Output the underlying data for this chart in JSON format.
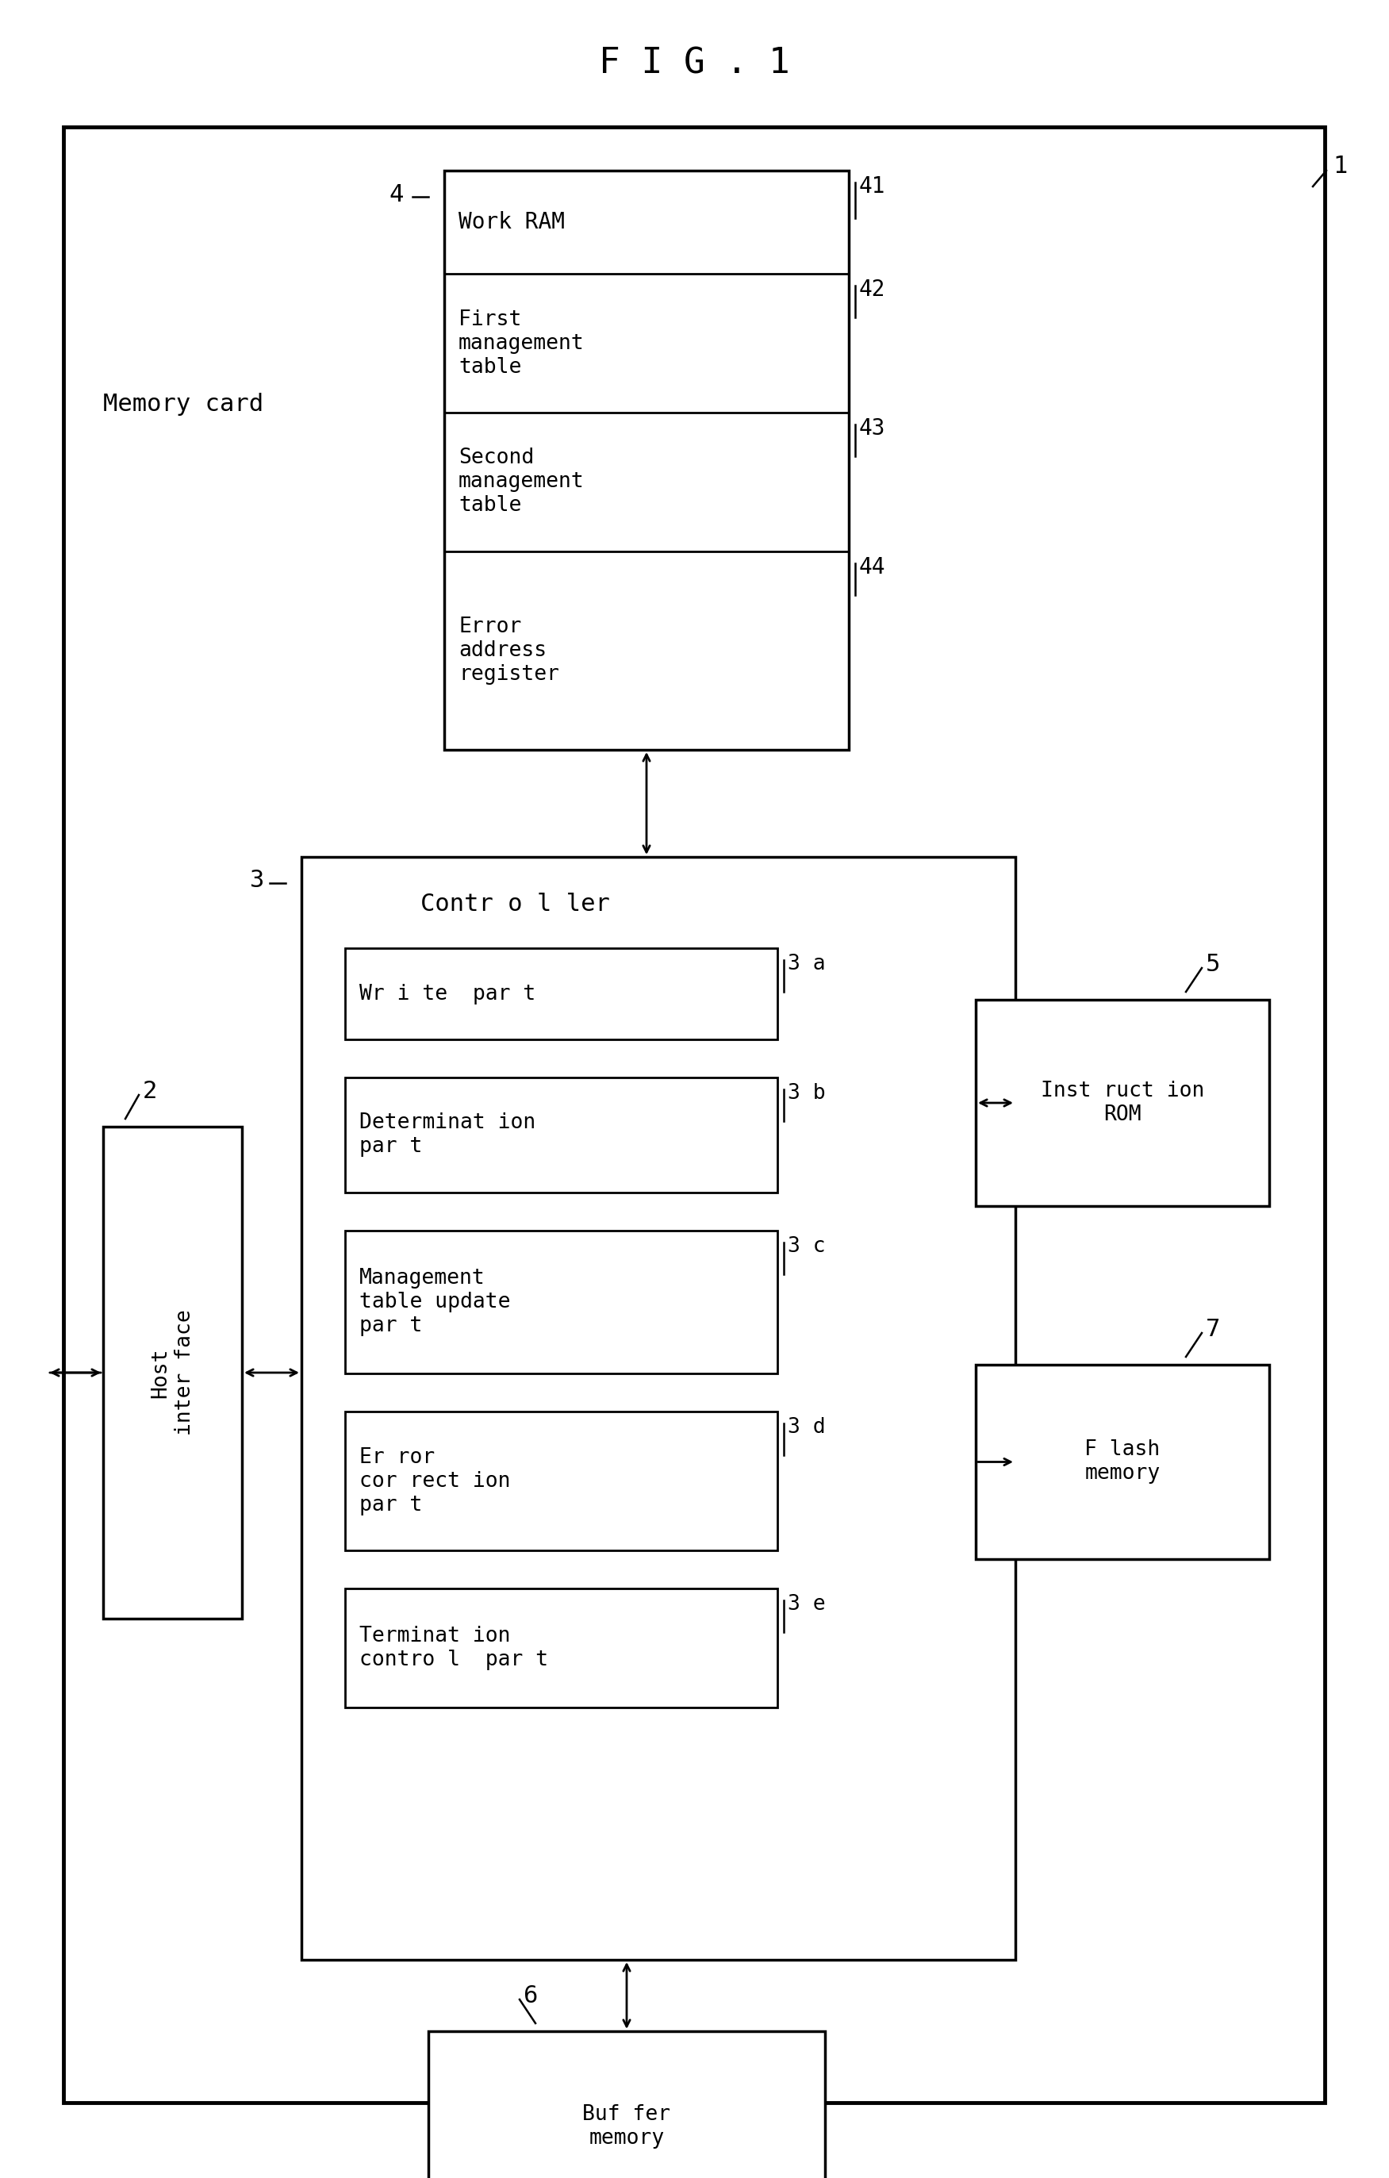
{
  "title": "F I G . 1",
  "bg_color": "#ffffff",
  "fig_label": "1",
  "memory_card_label": "Memory card",
  "work_ram_label": "4",
  "work_ram_sub_label": "41",
  "work_ram_text": "Work RAM",
  "seg41_label": "42",
  "seg41_text": "First\nmanagement\ntable",
  "seg42_label": "43",
  "seg42_text": "Second\nmanagement\ntable",
  "seg43_label": "44",
  "seg43_text": "Error\naddress\nregister",
  "controller_label": "3",
  "controller_title": "Contr o l ler",
  "write_part_text": "Wr i te  par t",
  "write_part_label": "3 a",
  "det_part_text": "Determinat ion\npar t",
  "det_part_label": "3 b",
  "mgmt_part_text": "Management\ntable update\npar t",
  "mgmt_part_label": "3 c",
  "err_part_text": "Er ror\ncor rect ion\npar t",
  "err_part_label": "3 d",
  "term_part_text": "Terminat ion\ncontro l  par t",
  "term_part_label": "3 e",
  "host_label": "2",
  "host_text": "Host\ninter face",
  "instruction_rom_label": "5",
  "instruction_rom_text": "Inst ruct ion\nROM",
  "flash_mem_label": "7",
  "flash_mem_text": "F lash\nmemory",
  "buffer_mem_label": "6",
  "buffer_mem_text": "Buf fer\nmemory"
}
